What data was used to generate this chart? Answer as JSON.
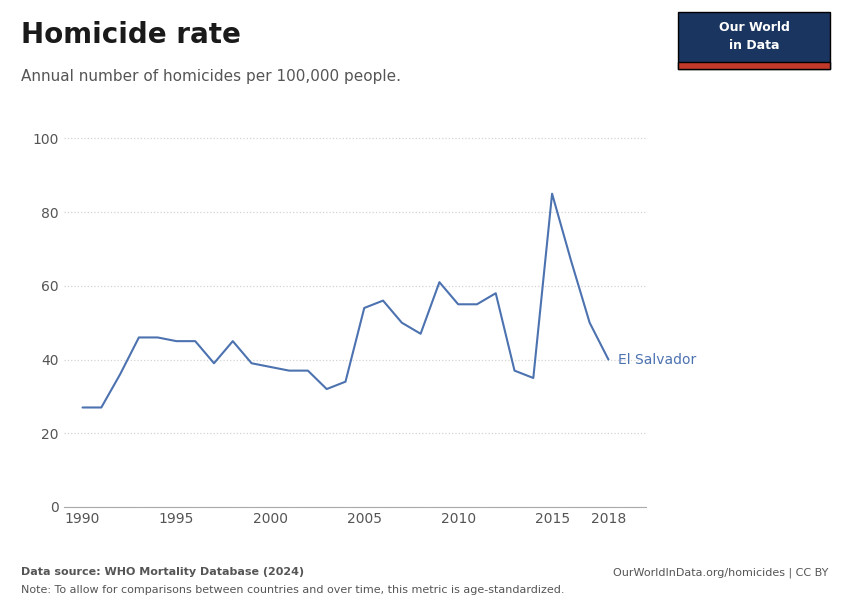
{
  "title": "Homicide rate",
  "subtitle": "Annual number of homicides per 100,000 people.",
  "line_color": "#4c72b0",
  "label_color": "#4c72b0",
  "label_text": "El Salvador",
  "years": [
    1990,
    1991,
    1992,
    1993,
    1994,
    1995,
    1996,
    1997,
    1998,
    1999,
    2000,
    2001,
    2002,
    2003,
    2004,
    2005,
    2006,
    2007,
    2008,
    2009,
    2010,
    2011,
    2012,
    2013,
    2014,
    2015,
    2016,
    2017,
    2018
  ],
  "values": [
    27,
    27,
    36,
    46,
    46,
    45,
    45,
    39,
    45,
    39,
    38,
    37,
    37,
    32,
    34,
    54,
    56,
    50,
    47,
    61,
    55,
    55,
    58,
    37,
    35,
    85,
    67,
    50,
    40
  ],
  "xlim": [
    1989,
    2020
  ],
  "ylim": [
    0,
    105
  ],
  "yticks": [
    0,
    20,
    40,
    60,
    80,
    100
  ],
  "xticks": [
    1990,
    1995,
    2000,
    2005,
    2010,
    2015,
    2018
  ],
  "grid_color": "#d3d3d3",
  "background_color": "#ffffff",
  "title_fontsize": 20,
  "subtitle_fontsize": 11,
  "tick_fontsize": 10,
  "source_text": "Data source: WHO Mortality Database (2024)",
  "source_right": "OurWorldInData.org/homicides | CC BY",
  "note_text": "Note: To allow for comparisons between countries and over time, this metric is age-standardized.",
  "owid_box_bg": "#1a3560",
  "owid_box_red": "#c0392b",
  "owid_text": "Our World\nin Data"
}
